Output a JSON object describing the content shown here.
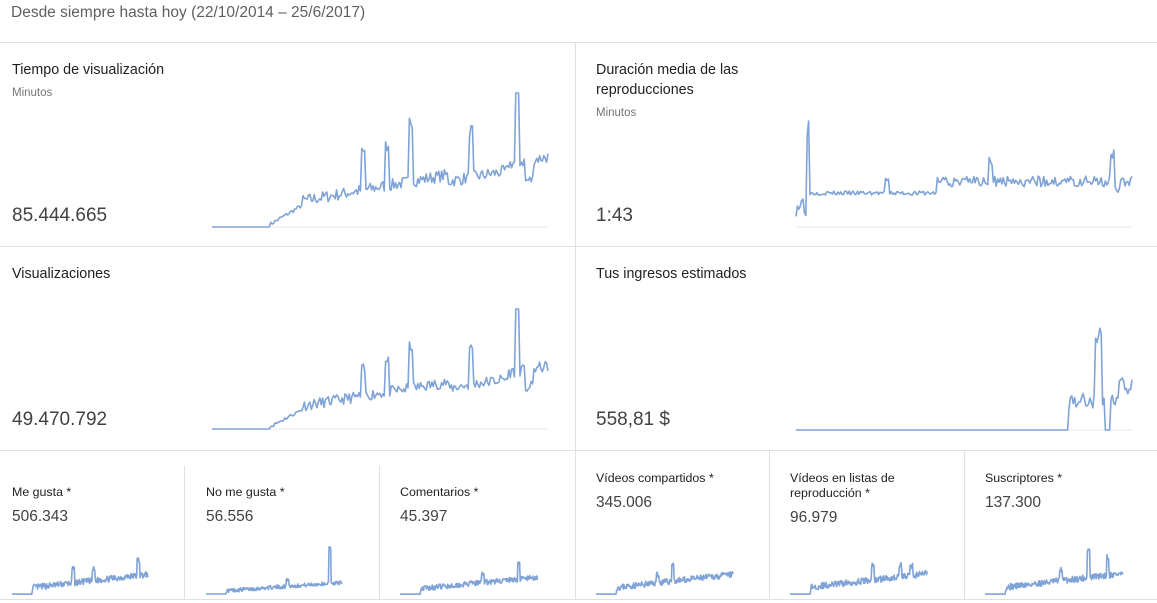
{
  "header": {
    "period": "Desde siempre hasta hoy (22/10/2014 – 25/6/2017)"
  },
  "colors": {
    "line": "#7fa3d6",
    "divider": "#e0e0e0"
  },
  "cards": {
    "watch_time": {
      "title": "Tiempo de visualización",
      "unit": "Minutos",
      "value": "85.444.665"
    },
    "avg_duration": {
      "title_line1": "Duración media de las",
      "title_line2": "reproducciones",
      "unit": "Minutos",
      "value": "1:43"
    },
    "views": {
      "title": "Visualizaciones",
      "value": "49.470.792"
    },
    "revenue": {
      "title": "Tus ingresos estimados",
      "value": "558,81 $"
    },
    "likes": {
      "title": "Me gusta *",
      "value": "506.343"
    },
    "dislikes": {
      "title": "No me gusta *",
      "value": "56.556"
    },
    "comments": {
      "title": "Comentarios *",
      "value": "45.397"
    },
    "shares": {
      "title": "Vídeos compartidos *",
      "value": "345.006"
    },
    "playlists": {
      "title_line1": "Vídeos en listas de",
      "title_line2": "reproducción *",
      "value": "96.979"
    },
    "subscribers": {
      "title": "Suscriptores *",
      "value": "137.300"
    }
  }
}
